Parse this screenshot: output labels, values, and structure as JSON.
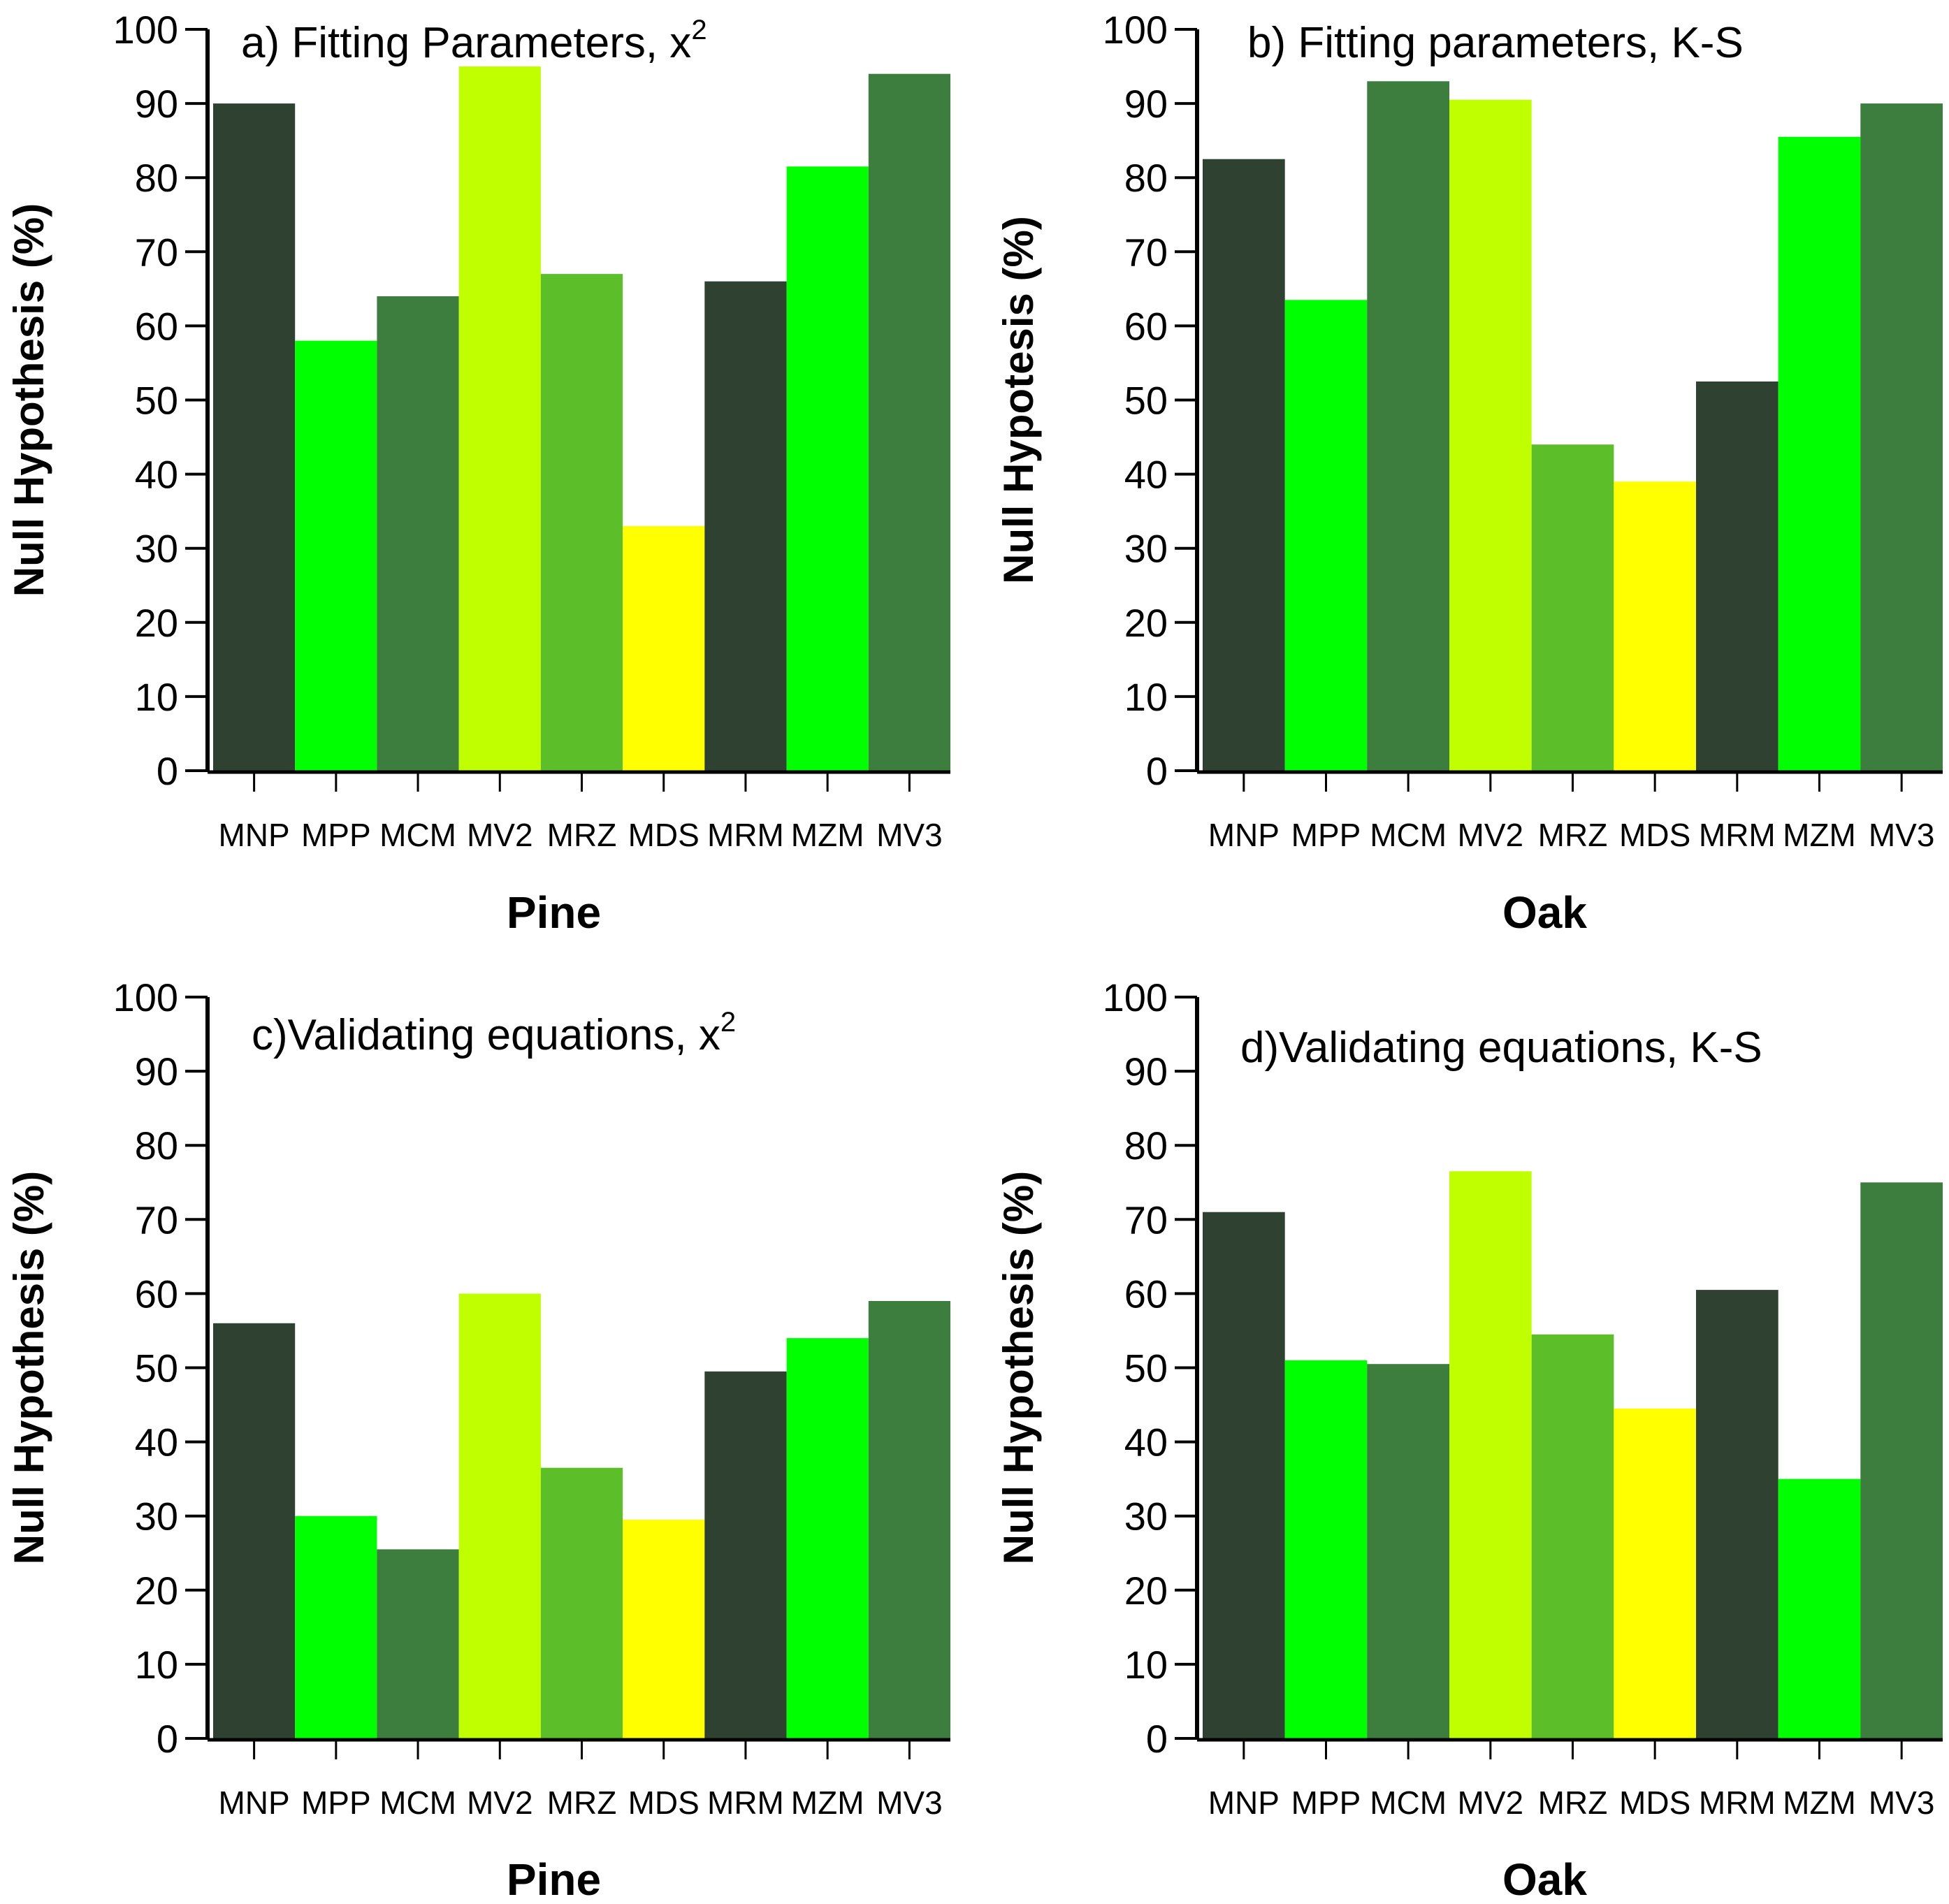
{
  "figure": {
    "y_axis_label": "Null Hypothesis (%)",
    "y_axis_label_oak": "Null Hypotesis (%)",
    "y_axis_label_oak_bottom": "Null Hypothesis (%)"
  },
  "chart_data": [
    {
      "type": "bar",
      "panel": "a",
      "title": "a) Fitting Parameters, x",
      "title_superscript": "2",
      "xlabel": "Pine",
      "ylabel": "Null Hypothesis (%)",
      "ylim": [
        0,
        100
      ],
      "yticks": [
        0,
        10,
        20,
        30,
        40,
        50,
        60,
        70,
        80,
        90,
        100
      ],
      "categories": [
        "MNP",
        "MPP",
        "MCM",
        "MV2",
        "MRZ",
        "MDS",
        "MRM",
        "MZM",
        "MV3"
      ],
      "values": [
        90,
        58,
        64,
        95,
        67,
        33,
        66,
        81.5,
        94
      ],
      "colors": [
        "#2f4130",
        "#00ff00",
        "#3d7d3d",
        "#bfff00",
        "#5cbf2a",
        "#ffff00",
        "#2f4130",
        "#00ff00",
        "#3d7d3d"
      ]
    },
    {
      "type": "bar",
      "panel": "b",
      "title": "b) Fitting parameters, K-S",
      "title_superscript": "",
      "xlabel": "Oak",
      "ylabel": "Null Hypotesis (%)",
      "ylim": [
        0,
        100
      ],
      "yticks": [
        0,
        10,
        20,
        30,
        40,
        50,
        60,
        70,
        80,
        90,
        100
      ],
      "categories": [
        "MNP",
        "MPP",
        "MCM",
        "MV2",
        "MRZ",
        "MDS",
        "MRM",
        "MZM",
        "MV3"
      ],
      "values": [
        82.5,
        63.5,
        93,
        90.5,
        44,
        39,
        52.5,
        85.5,
        90
      ],
      "colors": [
        "#2f4130",
        "#00ff00",
        "#3d7d3d",
        "#bfff00",
        "#5cbf2a",
        "#ffff00",
        "#2f4130",
        "#00ff00",
        "#3d7d3d"
      ]
    },
    {
      "type": "bar",
      "panel": "c",
      "title": "c)Validating equations, x",
      "title_superscript": "2",
      "xlabel": "Pine",
      "ylabel": "Null Hypothesis (%)",
      "ylim": [
        0,
        100
      ],
      "yticks": [
        0,
        10,
        20,
        30,
        40,
        50,
        60,
        70,
        80,
        90,
        100
      ],
      "categories": [
        "MNP",
        "MPP",
        "MCM",
        "MV2",
        "MRZ",
        "MDS",
        "MRM",
        "MZM",
        "MV3"
      ],
      "values": [
        56,
        30,
        25.5,
        60,
        36.5,
        29.5,
        49.5,
        54,
        59
      ],
      "colors": [
        "#2f4130",
        "#00ff00",
        "#3d7d3d",
        "#bfff00",
        "#5cbf2a",
        "#ffff00",
        "#2f4130",
        "#00ff00",
        "#3d7d3d"
      ]
    },
    {
      "type": "bar",
      "panel": "d",
      "title": "d)Validating equations, K-S",
      "title_superscript": "",
      "xlabel": "Oak",
      "ylabel": "Null Hypothesis (%)",
      "ylim": [
        0,
        100
      ],
      "yticks": [
        0,
        10,
        20,
        30,
        40,
        50,
        60,
        70,
        80,
        90,
        100
      ],
      "categories": [
        "MNP",
        "MPP",
        "MCM",
        "MV2",
        "MRZ",
        "MDS",
        "MRM",
        "MZM",
        "MV3"
      ],
      "values": [
        71,
        51,
        50.5,
        76.5,
        54.5,
        44.5,
        60.5,
        35,
        75
      ],
      "colors": [
        "#2f4130",
        "#00ff00",
        "#3d7d3d",
        "#bfff00",
        "#5cbf2a",
        "#ffff00",
        "#2f4130",
        "#00ff00",
        "#3d7d3d"
      ]
    }
  ]
}
